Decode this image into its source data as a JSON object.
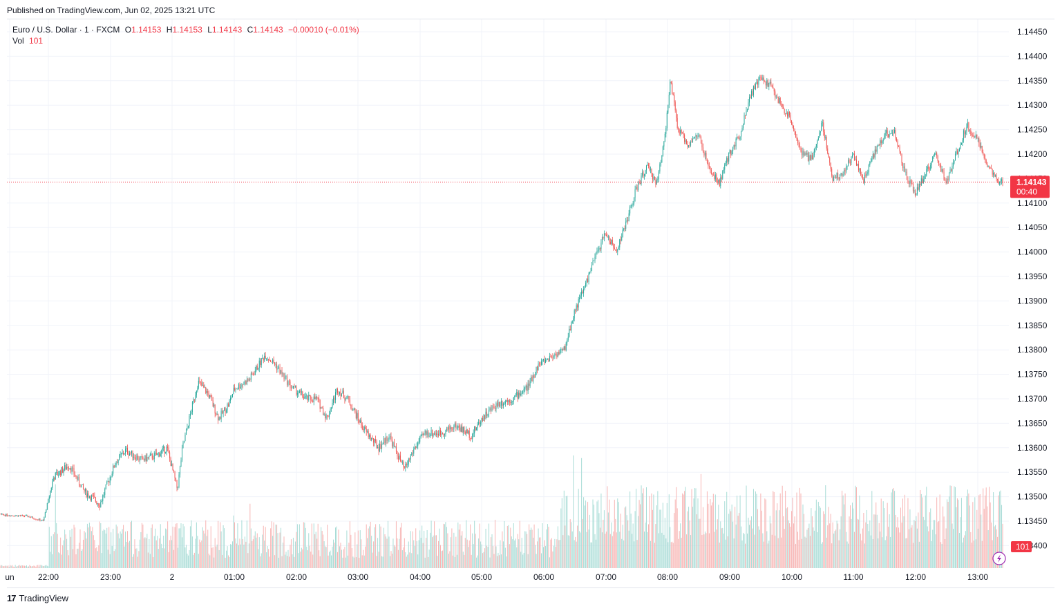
{
  "published": "Published on TradingView.com, Jun 02, 2025 13:21 UTC",
  "legend": {
    "symbol": "Euro / U.S. Dollar · 1 · FXCM",
    "o_label": "O",
    "o": "1.14153",
    "h_label": "H",
    "h": "1.14153",
    "l_label": "L",
    "l": "1.14143",
    "c_label": "C",
    "c": "1.14143",
    "change": "−0.00010 (−0.01%)",
    "vol_label": "Vol",
    "vol": "101"
  },
  "brand": {
    "logo": "17",
    "name": "TradingView"
  },
  "colors": {
    "up": "#26a69a",
    "down": "#ef5350",
    "price_tag": "#f23645",
    "grid": "#f0f3fa"
  },
  "chart_data": {
    "type": "candlestick",
    "title": "Euro / U.S. Dollar · 1 · FXCM",
    "price_ticks": [
      "1.14450",
      "1.14400",
      "1.14350",
      "1.14300",
      "1.14250",
      "1.14200",
      "1.14150",
      "1.14100",
      "1.14050",
      "1.14000",
      "1.13950",
      "1.13900",
      "1.13850",
      "1.13800",
      "1.13750",
      "1.13700",
      "1.13650",
      "1.13600",
      "1.13550",
      "1.13500",
      "1.13450",
      "1.13400"
    ],
    "ylim": [
      1.1337,
      1.1447
    ],
    "time_labels": [
      "un",
      "22:00",
      "23:00",
      "2",
      "01:00",
      "02:00",
      "03:00",
      "04:00",
      "05:00",
      "06:00",
      "07:00",
      "08:00",
      "09:00",
      "10:00",
      "11:00",
      "12:00",
      "13:00"
    ],
    "last_price": "1.14143",
    "countdown": "00:40",
    "last_volume": "101",
    "close_path": [
      [
        "21:00",
        1.13465
      ],
      [
        "21:40",
        1.1346
      ],
      [
        "21:55",
        1.1345
      ],
      [
        "22:05",
        1.1354
      ],
      [
        "22:20",
        1.13565
      ],
      [
        "22:35",
        1.1351
      ],
      [
        "22:50",
        1.13485
      ],
      [
        "23:05",
        1.1357
      ],
      [
        "23:15",
        1.13595
      ],
      [
        "23:30",
        1.13575
      ],
      [
        "23:45",
        1.13585
      ],
      [
        "23:55",
        1.136
      ],
      [
        "00:05",
        1.13515
      ],
      [
        "00:10",
        1.136
      ],
      [
        "00:25",
        1.13735
      ],
      [
        "00:35",
        1.1371
      ],
      [
        "00:45",
        1.1366
      ],
      [
        "00:55",
        1.1369
      ],
      [
        "01:00",
        1.1372
      ],
      [
        "01:15",
        1.1374
      ],
      [
        "01:30",
        1.1379
      ],
      [
        "01:40",
        1.1377
      ],
      [
        "01:55",
        1.13725
      ],
      [
        "02:10",
        1.137
      ],
      [
        "02:20",
        1.137
      ],
      [
        "02:30",
        1.1366
      ],
      [
        "02:40",
        1.1372
      ],
      [
        "02:50",
        1.137
      ],
      [
        "03:05",
        1.1364
      ],
      [
        "03:20",
        1.136
      ],
      [
        "03:30",
        1.13625
      ],
      [
        "03:45",
        1.13555
      ],
      [
        "03:55",
        1.136
      ],
      [
        "04:05",
        1.1363
      ],
      [
        "04:20",
        1.1363
      ],
      [
        "04:35",
        1.13645
      ],
      [
        "04:50",
        1.13625
      ],
      [
        "05:00",
        1.1366
      ],
      [
        "05:15",
        1.1369
      ],
      [
        "05:30",
        1.137
      ],
      [
        "05:45",
        1.13725
      ],
      [
        "05:55",
        1.1377
      ],
      [
        "06:10",
        1.1379
      ],
      [
        "06:20",
        1.138
      ],
      [
        "06:30",
        1.1388
      ],
      [
        "06:40",
        1.1393
      ],
      [
        "06:50",
        1.1399
      ],
      [
        "07:00",
        1.1404
      ],
      [
        "07:10",
        1.14
      ],
      [
        "07:20",
        1.1406
      ],
      [
        "07:30",
        1.1413
      ],
      [
        "07:40",
        1.14175
      ],
      [
        "07:50",
        1.1414
      ],
      [
        "07:58",
        1.1425
      ],
      [
        "08:03",
        1.1435
      ],
      [
        "08:10",
        1.1425
      ],
      [
        "08:20",
        1.1422
      ],
      [
        "08:30",
        1.1424
      ],
      [
        "08:40",
        1.1417
      ],
      [
        "08:50",
        1.1414
      ],
      [
        "09:00",
        1.142
      ],
      [
        "09:10",
        1.1424
      ],
      [
        "09:20",
        1.1432
      ],
      [
        "09:30",
        1.14355
      ],
      [
        "09:40",
        1.1434
      ],
      [
        "09:50",
        1.143
      ],
      [
        "10:00",
        1.1427
      ],
      [
        "10:10",
        1.142
      ],
      [
        "10:20",
        1.1419
      ],
      [
        "10:30",
        1.14265
      ],
      [
        "10:40",
        1.1415
      ],
      [
        "10:50",
        1.1416
      ],
      [
        "11:00",
        1.142
      ],
      [
        "11:10",
        1.14145
      ],
      [
        "11:20",
        1.142
      ],
      [
        "11:30",
        1.1424
      ],
      [
        "11:40",
        1.14245
      ],
      [
        "11:50",
        1.1416
      ],
      [
        "12:00",
        1.1412
      ],
      [
        "12:10",
        1.1416
      ],
      [
        "12:20",
        1.142
      ],
      [
        "12:30",
        1.1414
      ],
      [
        "12:40",
        1.142
      ],
      [
        "12:50",
        1.1426
      ],
      [
        "13:00",
        1.1423
      ],
      [
        "13:10",
        1.1418
      ],
      [
        "13:20",
        1.1414
      ],
      [
        "13:25",
        1.14143
      ]
    ]
  }
}
